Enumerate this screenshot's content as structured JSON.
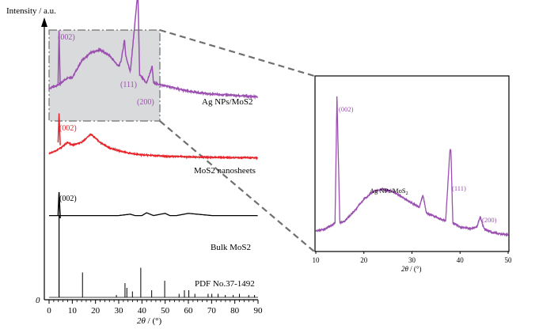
{
  "colors": {
    "ag": "#9b4fb0",
    "mos2": "#e8242a",
    "bulk": "#000000",
    "highlight": "#d9dadc",
    "dash": "#6f6f6f"
  },
  "main": {
    "ylabel": "Intensity / a.u.",
    "xlabel_sym": "2θ",
    "xlabel_unit": " / (°)",
    "origin": "0",
    "xticks": [
      "0",
      "10",
      "20",
      "30",
      "40",
      "50",
      "60",
      "70",
      "80",
      "90"
    ]
  },
  "inset": {
    "xlabel_sym": "2θ",
    "xlabel_unit": " / (°)",
    "xticks": [
      "10",
      "20",
      "30",
      "40",
      "50"
    ],
    "series_label": "Ag NPs/MoS",
    "series_sub": "2",
    "peaks": [
      "(002)",
      "(111)",
      "(200)"
    ]
  },
  "chart_data": [
    {
      "type": "line",
      "xlabel": "2θ / (°)",
      "ylabel": "Intensity / a.u.",
      "xlim": [
        0,
        90
      ],
      "grid": false,
      "series": [
        {
          "name": "Ag NPs/MoS2",
          "color": "#9b4fb0",
          "offset": 0.745,
          "x": [
            0,
            3,
            5,
            8,
            10,
            14,
            18,
            22,
            26,
            28,
            30,
            31,
            32,
            32.5,
            33,
            35,
            38,
            38.3,
            39,
            42,
            44,
            44.4,
            45,
            50,
            60,
            70,
            80,
            90
          ],
          "y": [
            0.02,
            0.03,
            0.04,
            0.06,
            0.06,
            0.12,
            0.15,
            0.16,
            0.14,
            0.12,
            0.1,
            0.12,
            0.17,
            0.2,
            0.14,
            0.08,
            0.35,
            0.36,
            0.07,
            0.04,
            0.09,
            0.1,
            0.04,
            0.03,
            0.01,
            0.0,
            -0.005,
            -0.01
          ],
          "annotations": [
            "(002)",
            "(111)",
            "(200)"
          ]
        },
        {
          "name": "MoS2 nanosheets",
          "color": "#e8242a",
          "offset": 0.51,
          "x": [
            0,
            3,
            5,
            8,
            10,
            14,
            18,
            22,
            26,
            30,
            35,
            40,
            50,
            60,
            70,
            80,
            90
          ],
          "y": [
            0.02,
            0.03,
            0.04,
            0.06,
            0.05,
            0.06,
            0.09,
            0.06,
            0.04,
            0.03,
            0.02,
            0.015,
            0.01,
            0.008,
            0.006,
            0.005,
            0.004
          ],
          "annotations": [
            "(002)"
          ]
        },
        {
          "name": "Bulk MoS2",
          "color": "#000000",
          "offset": 0.305,
          "x": [
            0,
            3,
            4,
            5,
            8,
            10,
            14,
            20,
            30,
            35,
            37,
            40,
            42,
            45,
            50,
            52,
            55,
            60,
            70,
            80,
            90
          ],
          "y": [
            0,
            0,
            0,
            0,
            0,
            0,
            0,
            0,
            0,
            0.005,
            0,
            0,
            0.01,
            0,
            0.008,
            0,
            0,
            0.008,
            0,
            0,
            0
          ],
          "annotations": [
            "(002)"
          ]
        }
      ],
      "reference": {
        "name": "PDF No.37-1492",
        "positions": [
          14.4,
          29.0,
          32.7,
          33.5,
          35.9,
          39.5,
          44.2,
          49.8,
          56.0,
          58.3,
          60.2,
          62.8,
          68.5,
          70.1,
          72.8,
          75.9,
          79.3,
          82.0,
          86.0,
          88.5
        ],
        "intensities": [
          0.21,
          0.02,
          0.12,
          0.08,
          0.05,
          0.25,
          0.06,
          0.14,
          0.03,
          0.06,
          0.06,
          0.03,
          0.03,
          0.03,
          0.03,
          0.02,
          0.02,
          0.03,
          0.02,
          0.02
        ]
      }
    },
    {
      "type": "line",
      "xlabel": "2θ / (°)",
      "xlim": [
        10,
        50
      ],
      "grid": false,
      "series": [
        {
          "name": "Ag NPs/MoS2",
          "color": "#9b4fb0",
          "x": [
            10,
            12,
            14,
            14.4,
            15,
            16,
            18,
            20,
            22,
            24,
            26,
            28,
            30,
            31.5,
            32.3,
            33,
            35,
            37,
            37.9,
            38.1,
            38.5,
            40,
            42,
            43.5,
            44.2,
            45,
            47,
            50
          ],
          "y": [
            0.04,
            0.05,
            0.08,
            0.72,
            0.08,
            0.09,
            0.14,
            0.2,
            0.24,
            0.25,
            0.24,
            0.21,
            0.18,
            0.16,
            0.22,
            0.13,
            0.11,
            0.09,
            0.45,
            0.45,
            0.08,
            0.06,
            0.05,
            0.06,
            0.11,
            0.05,
            0.03,
            0.02
          ],
          "annotations": [
            "(002)",
            "(111)",
            "(200)"
          ]
        }
      ]
    }
  ]
}
